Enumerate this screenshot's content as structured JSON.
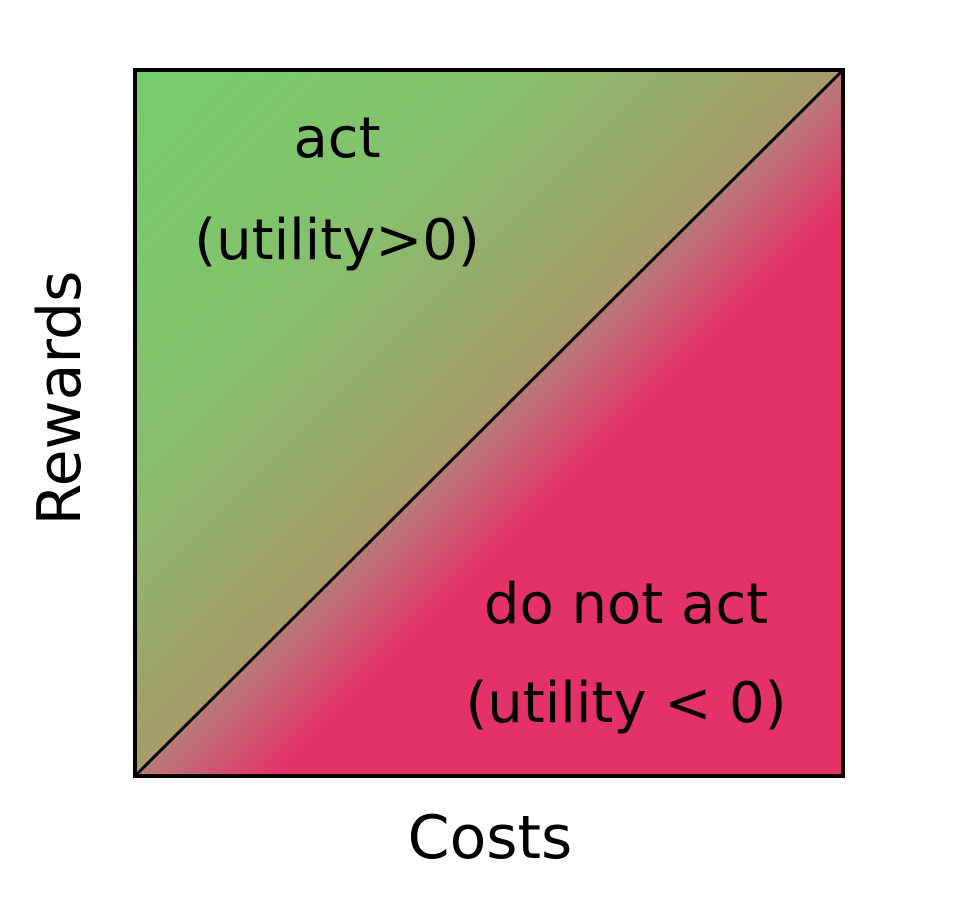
{
  "diagram": {
    "x_axis_label": "Costs",
    "y_axis_label": "Rewards",
    "regions": {
      "act": {
        "line1": "act",
        "line2": "(utility>0)"
      },
      "do_not_act": {
        "line1": "do not act",
        "line2": "(utility < 0)"
      }
    },
    "colors": {
      "act_green": "#74cd6b",
      "do_not_act_pink": "#e5316a",
      "blend": "#a89a6a",
      "border": "#000000"
    }
  }
}
